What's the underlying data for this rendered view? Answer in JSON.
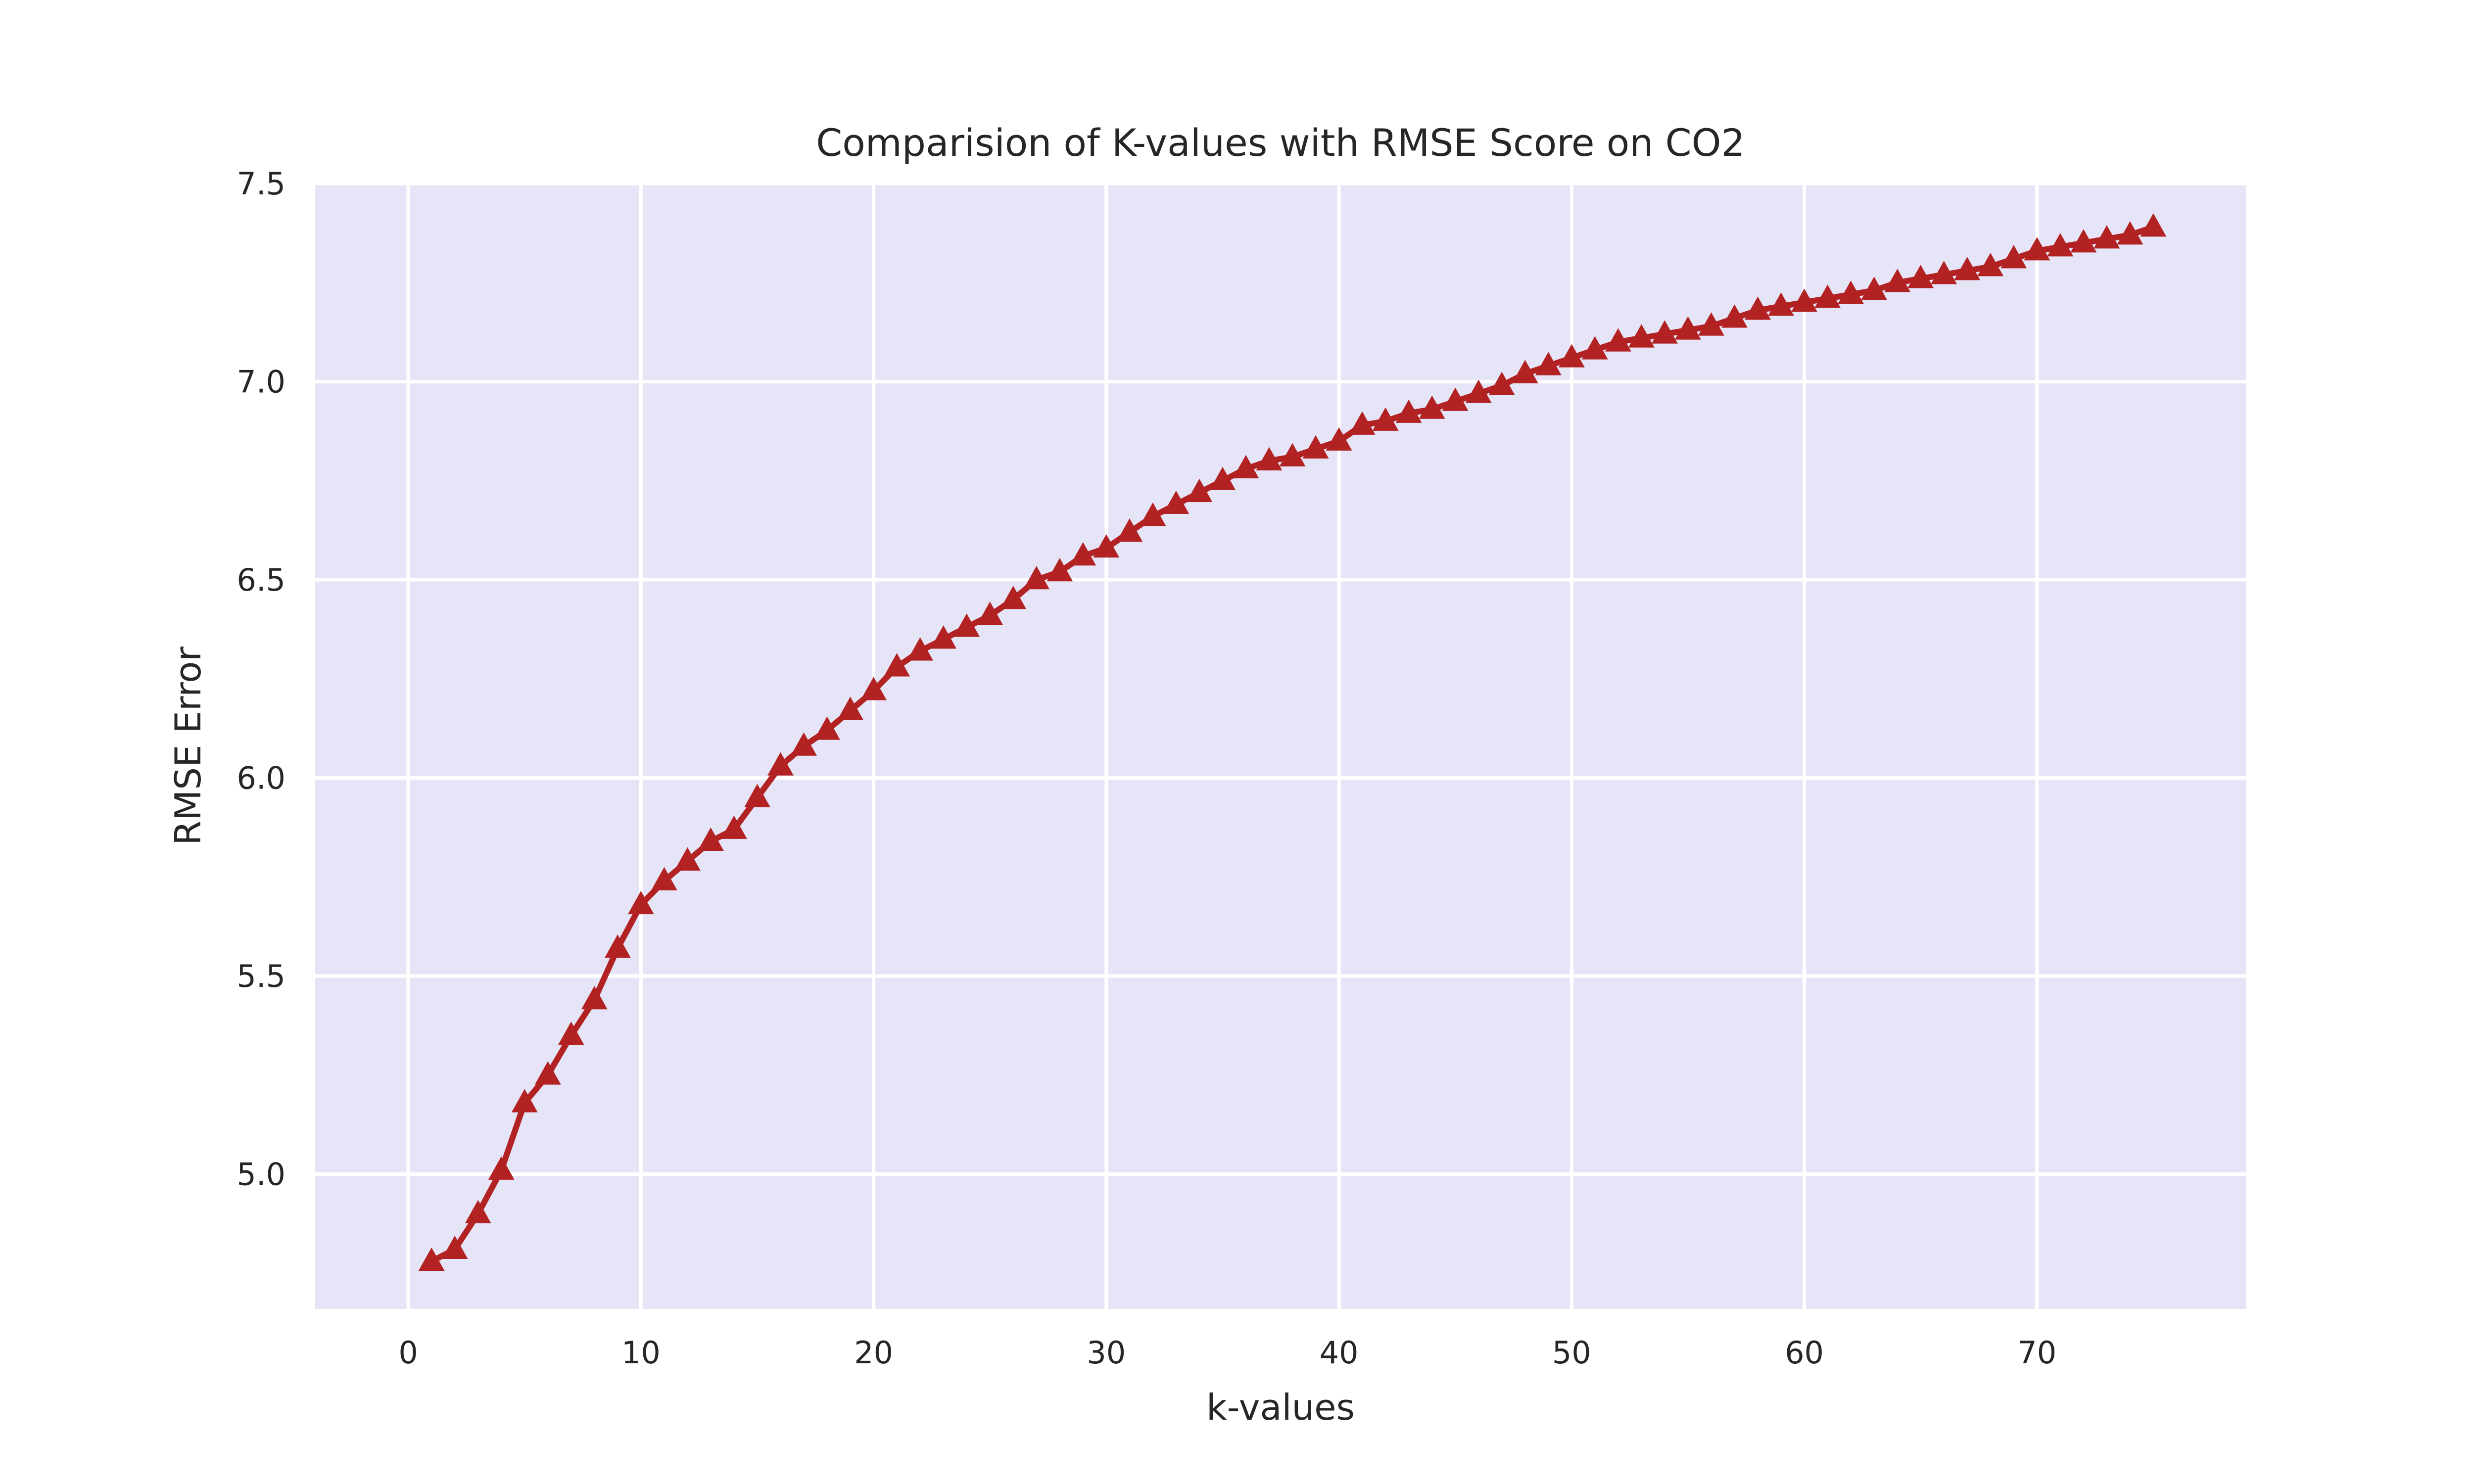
{
  "chart_data": {
    "type": "line",
    "title": "Comparision of K-values with RMSE Score on CO2",
    "xlabel": "k-values",
    "ylabel": "RMSE Error",
    "xlim": [
      -4,
      79
    ],
    "ylim": [
      4.66,
      7.5
    ],
    "xticks": [
      0,
      10,
      20,
      30,
      40,
      50,
      60,
      70
    ],
    "yticks": [
      5.0,
      5.5,
      6.0,
      6.5,
      7.0,
      7.5
    ],
    "grid": true,
    "background": "#e5e5f7",
    "series": [
      {
        "name": "RMSE",
        "color": "#b22222",
        "marker": "triangle",
        "x": [
          1,
          2,
          3,
          4,
          5,
          6,
          7,
          8,
          9,
          10,
          11,
          12,
          13,
          14,
          15,
          16,
          17,
          18,
          19,
          20,
          21,
          22,
          23,
          24,
          25,
          26,
          27,
          28,
          29,
          30,
          31,
          32,
          33,
          34,
          35,
          36,
          37,
          38,
          39,
          40,
          41,
          42,
          43,
          44,
          45,
          46,
          47,
          48,
          49,
          50,
          51,
          52,
          53,
          54,
          55,
          56,
          57,
          58,
          59,
          60,
          61,
          62,
          63,
          64,
          65,
          66,
          67,
          68,
          69,
          70,
          71,
          72,
          73,
          74,
          75
        ],
        "values": [
          4.78,
          4.81,
          4.9,
          5.01,
          5.18,
          5.25,
          5.35,
          5.44,
          5.57,
          5.68,
          5.74,
          5.79,
          5.84,
          5.87,
          5.95,
          6.03,
          6.08,
          6.12,
          6.17,
          6.22,
          6.28,
          6.32,
          6.35,
          6.38,
          6.41,
          6.45,
          6.5,
          6.52,
          6.56,
          6.58,
          6.62,
          6.66,
          6.69,
          6.72,
          6.75,
          6.78,
          6.8,
          6.81,
          6.83,
          6.85,
          6.89,
          6.9,
          6.92,
          6.93,
          6.95,
          6.97,
          6.99,
          7.02,
          7.04,
          7.06,
          7.08,
          7.1,
          7.11,
          7.12,
          7.13,
          7.14,
          7.16,
          7.18,
          7.19,
          7.2,
          7.21,
          7.22,
          7.23,
          7.25,
          7.26,
          7.27,
          7.28,
          7.29,
          7.31,
          7.33,
          7.34,
          7.35,
          7.36,
          7.37,
          7.39
        ]
      }
    ]
  }
}
